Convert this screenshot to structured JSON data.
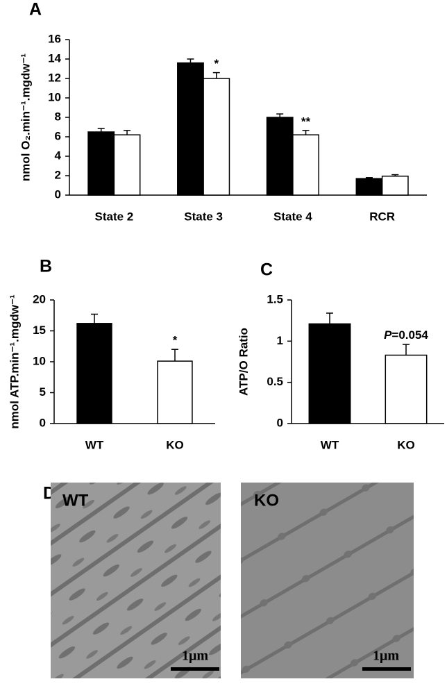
{
  "chart_data": [
    {
      "type": "bar",
      "panel": "A",
      "ylabel": "nmol O₂.min⁻¹.mgdw⁻¹",
      "categories": [
        "State 2",
        "State 3",
        "State 4",
        "RCR"
      ],
      "series": [
        {
          "color": "#000000",
          "values": [
            6.5,
            13.6,
            8.0,
            1.7
          ],
          "errors": [
            0.35,
            0.4,
            0.35,
            0.1
          ],
          "annotations": [
            null,
            null,
            null,
            null
          ]
        },
        {
          "color": "#ffffff",
          "values": [
            6.2,
            12.0,
            6.2,
            1.95
          ],
          "errors": [
            0.45,
            0.6,
            0.45,
            0.15
          ],
          "annotations": [
            null,
            "*",
            "**",
            null
          ]
        }
      ],
      "ylim": [
        0,
        16
      ],
      "yticks": [
        0,
        2,
        4,
        6,
        8,
        10,
        12,
        14,
        16
      ]
    },
    {
      "type": "bar",
      "panel": "B",
      "ylabel": "nmol ATP.min⁻¹.mgdw⁻¹",
      "categories": [
        "WT",
        "KO"
      ],
      "series": [
        {
          "colors": [
            "#000000",
            "#ffffff"
          ],
          "values": [
            16.2,
            10.1
          ],
          "errors": [
            1.5,
            1.9
          ],
          "annotations": [
            null,
            "*"
          ]
        }
      ],
      "ylim": [
        0,
        20
      ],
      "yticks": [
        0,
        5,
        10,
        15,
        20
      ]
    },
    {
      "type": "bar",
      "panel": "C",
      "ylabel": "ATP/O Ratio",
      "categories": [
        "WT",
        "KO"
      ],
      "series": [
        {
          "colors": [
            "#000000",
            "#ffffff"
          ],
          "values": [
            1.21,
            0.83
          ],
          "errors": [
            0.13,
            0.13
          ],
          "annotations": [
            null,
            "P=0.054"
          ]
        }
      ],
      "ylim": [
        0,
        1.5
      ],
      "yticks": [
        0,
        0.5,
        1,
        1.5
      ]
    }
  ],
  "micrographs": {
    "panel": "D",
    "images": [
      {
        "label": "WT",
        "scale": "1μm"
      },
      {
        "label": "KO",
        "scale": "1μm"
      }
    ]
  }
}
